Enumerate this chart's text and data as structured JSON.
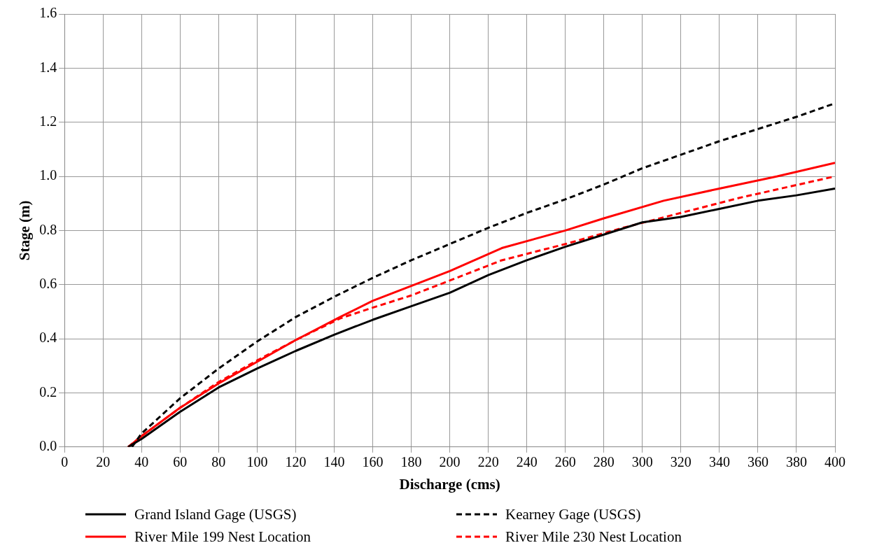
{
  "chart_data": {
    "type": "line",
    "xlabel": "Discharge (cms)",
    "ylabel": "Stage (m)",
    "xlim": [
      0,
      400
    ],
    "xticks": [
      0,
      20,
      40,
      60,
      80,
      100,
      120,
      140,
      160,
      180,
      200,
      220,
      240,
      260,
      280,
      300,
      320,
      340,
      360,
      380,
      400
    ],
    "ylim": [
      0,
      1.6
    ],
    "yticks": [
      {
        "value": 0,
        "label": "0.0"
      },
      0.2,
      0.4,
      0.6,
      0.8,
      {
        "value": 1,
        "label": "1.0"
      },
      1.2,
      1.4,
      1.6
    ],
    "grid": true,
    "legend": "bottom",
    "marker": "none",
    "series": [
      {
        "name": "Grand Island Gage (USGS)",
        "color": "#000000",
        "line_style": "solid",
        "x": [
          33,
          40,
          60,
          80,
          100,
          120,
          140,
          160,
          180,
          200,
          220,
          240,
          260,
          280,
          300,
          320,
          340,
          360,
          380,
          400
        ],
        "values": [
          0,
          0.03,
          0.13,
          0.22,
          0.29,
          0.355,
          0.415,
          0.47,
          0.52,
          0.57,
          0.635,
          0.69,
          0.74,
          0.785,
          0.83,
          0.85,
          0.88,
          0.91,
          0.93,
          0.955
        ]
      },
      {
        "name": "Kearney Gage (USGS)",
        "color": "#000000",
        "line_style": "dashed",
        "x": [
          35,
          40,
          60,
          80,
          100,
          120,
          140,
          160,
          180,
          200,
          220,
          240,
          260,
          280,
          300,
          320,
          340,
          360,
          380,
          400
        ],
        "values": [
          0,
          0.05,
          0.18,
          0.29,
          0.39,
          0.48,
          0.555,
          0.625,
          0.69,
          0.75,
          0.81,
          0.865,
          0.915,
          0.97,
          1.03,
          1.08,
          1.13,
          1.175,
          1.22,
          1.27
        ]
      },
      {
        "name": "River Mile 199 Nest Location",
        "color": "#ff0000",
        "line_style": "solid",
        "x": [
          33,
          40,
          60,
          80,
          100,
          120,
          143,
          160,
          180,
          200,
          227,
          260,
          280,
          311,
          340,
          370,
          400
        ],
        "values": [
          0,
          0.04,
          0.145,
          0.235,
          0.315,
          0.395,
          0.48,
          0.54,
          0.595,
          0.65,
          0.735,
          0.8,
          0.845,
          0.91,
          0.955,
          1.0,
          1.05
        ]
      },
      {
        "name": "River Mile 230 Nest Location",
        "color": "#ff0000",
        "line_style": "dashed",
        "x": [
          33,
          40,
          60,
          80,
          100,
          120,
          143,
          160,
          180,
          200,
          227,
          260,
          290,
          320,
          350,
          400
        ],
        "values": [
          0,
          0.04,
          0.145,
          0.24,
          0.32,
          0.395,
          0.475,
          0.515,
          0.56,
          0.615,
          0.69,
          0.75,
          0.81,
          0.865,
          0.92,
          1.0
        ]
      }
    ]
  }
}
